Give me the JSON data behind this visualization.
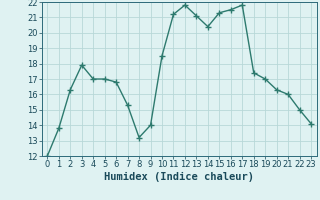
{
  "x": [
    0,
    1,
    2,
    3,
    4,
    5,
    6,
    7,
    8,
    9,
    10,
    11,
    12,
    13,
    14,
    15,
    16,
    17,
    18,
    19,
    20,
    21,
    22,
    23
  ],
  "y": [
    12,
    13.8,
    16.3,
    17.9,
    17.0,
    17.0,
    16.8,
    15.3,
    13.2,
    14.0,
    18.5,
    21.2,
    21.8,
    21.1,
    20.4,
    21.3,
    21.5,
    21.8,
    17.4,
    17.0,
    16.3,
    16.0,
    15.0,
    14.1
  ],
  "line_color": "#2d7a6e",
  "marker": "D",
  "marker_size": 2.0,
  "bg_color": "#dff2f2",
  "grid_color": "#b8d8d8",
  "xlabel": "Humidex (Indice chaleur)",
  "ylim": [
    12,
    22
  ],
  "xlim_min": -0.5,
  "xlim_max": 23.5,
  "yticks": [
    12,
    13,
    14,
    15,
    16,
    17,
    18,
    19,
    20,
    21,
    22
  ],
  "xticks": [
    0,
    1,
    2,
    3,
    4,
    5,
    6,
    7,
    8,
    9,
    10,
    11,
    12,
    13,
    14,
    15,
    16,
    17,
    18,
    19,
    20,
    21,
    22,
    23
  ],
  "xlabel_color": "#1a4a5a",
  "axis_color": "#2d6a7a",
  "tick_label_color": "#1a4a5a",
  "xlabel_fontsize": 7.5,
  "tick_fontsize": 6.0,
  "linewidth": 1.0
}
